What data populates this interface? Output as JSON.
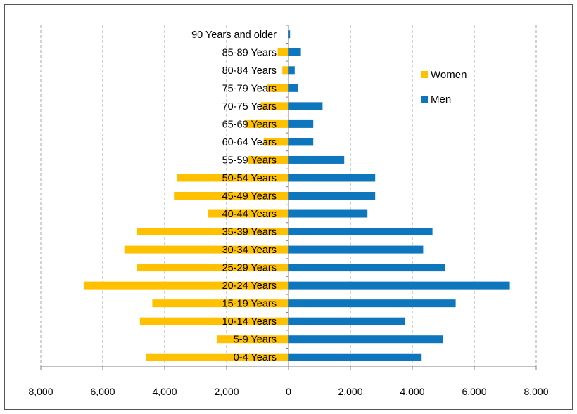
{
  "chart_data": {
    "type": "bar",
    "orientation": "horizontal",
    "title": "",
    "xlabel": "",
    "ylabel": "",
    "categories": [
      "0-4 Years",
      "5-9 Years",
      "10-14 Years",
      "15-19 Years",
      "20-24 Years",
      "25-29 Years",
      "30-34 Years",
      "35-39 Years",
      "40-44 Years",
      "45-49 Years",
      "50-54 Years",
      "55-59 Years",
      "60-64 Years",
      "65-69 Years",
      "70-75 Years",
      "75-79 Years",
      "80-84 Years",
      "85-89 Years",
      "90 Years and older"
    ],
    "series": [
      {
        "name": "Women",
        "color": "#FFC000",
        "side": "left",
        "values": [
          4600,
          2300,
          4800,
          4400,
          6600,
          4900,
          5300,
          4900,
          2600,
          3700,
          3600,
          1300,
          800,
          1400,
          900,
          700,
          200,
          350,
          0
        ]
      },
      {
        "name": "Men",
        "color": "#0E76BC",
        "side": "right",
        "values": [
          4300,
          5000,
          3750,
          5400,
          7150,
          5050,
          4350,
          4650,
          2550,
          2800,
          2800,
          1800,
          800,
          800,
          1100,
          300,
          200,
          400,
          50
        ]
      }
    ],
    "xlim": [
      -8000,
      8000
    ],
    "xticks": [
      -8000,
      -6000,
      -4000,
      -2000,
      0,
      2000,
      4000,
      6000,
      8000
    ],
    "xtick_labels": [
      "8,000",
      "6,000",
      "4,000",
      "2,000",
      "0",
      "2,000",
      "4,000",
      "6,000",
      "8,000"
    ],
    "grid": "vertical dashed",
    "legend": {
      "placement": "right",
      "items": [
        "Women",
        "Men"
      ]
    }
  }
}
